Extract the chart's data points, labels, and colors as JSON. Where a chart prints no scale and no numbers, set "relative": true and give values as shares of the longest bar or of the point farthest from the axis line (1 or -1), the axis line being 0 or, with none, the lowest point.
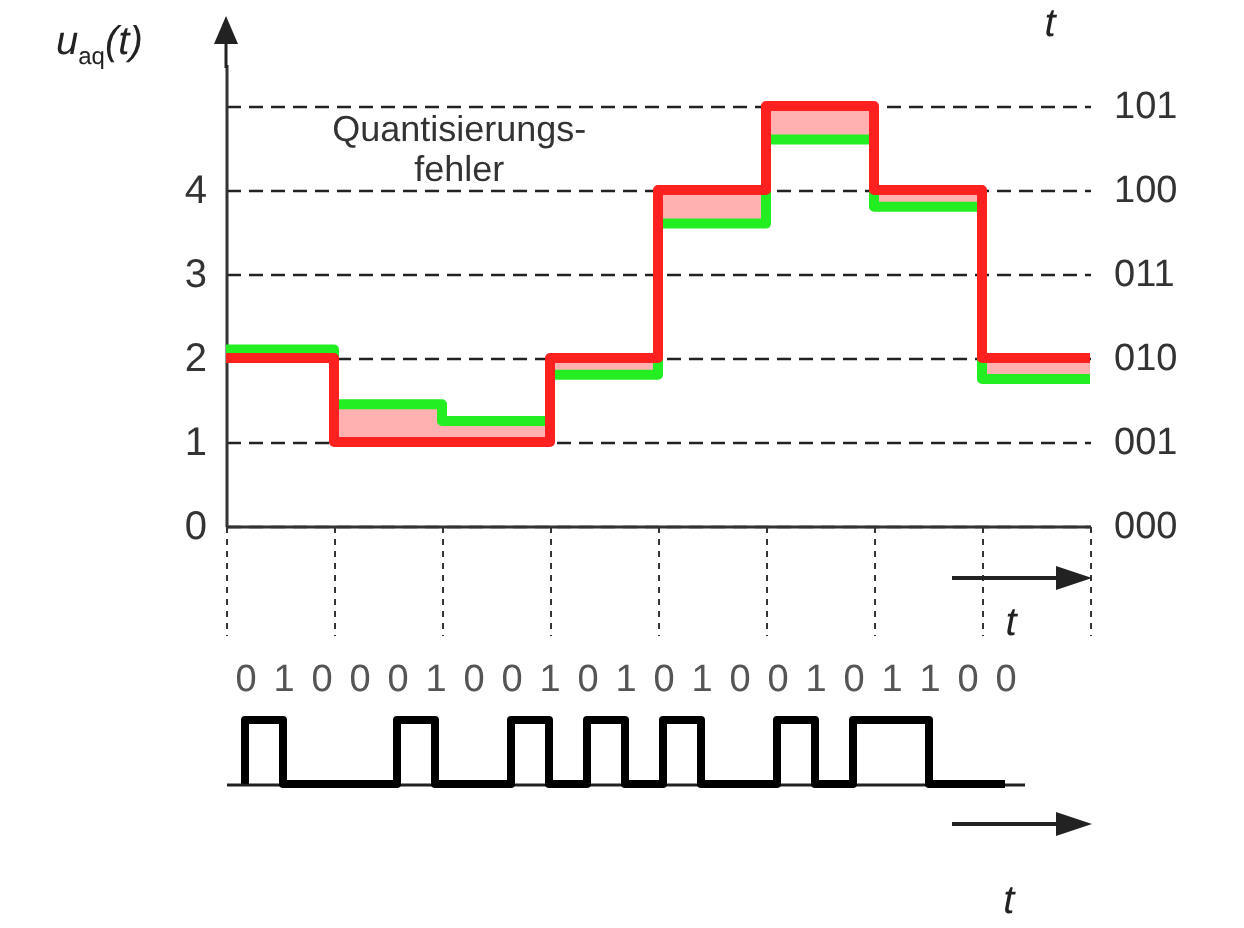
{
  "chart_data": [
    {
      "type": "step",
      "ylabel": "u$_{aq}$(t)",
      "y2label": "t",
      "xlabel": "t",
      "categories": [
        null,
        null,
        null,
        null,
        null,
        null,
        null,
        null,
        null
      ],
      "series": [
        {
          "color": "#ff2020",
          "values": [
            2,
            1,
            1,
            2,
            4,
            5,
            4,
            2,
            2
          ],
          "lower": [
            2,
            1,
            1,
            1.8,
            3.6,
            4.6,
            3.8,
            1.75,
            1.75
          ],
          "upper": [
            2.1,
            1.45,
            1.25,
            2,
            4,
            5,
            4,
            2,
            2
          ]
        },
        {
          "color": "#22ee22",
          "values": [
            2.1,
            1.45,
            1.25,
            1.8,
            3.6,
            4.6,
            3.8,
            1.75,
            1.75
          ]
        }
      ],
      "ylim": [
        0,
        5.5
      ],
      "yticks": [
        0,
        1,
        2,
        3,
        4,
        {
          "value": 5,
          "label": null
        }
      ],
      "grid": "y",
      "annotations": [
        "Quantisierungs-fehler",
        "000",
        "001",
        "010",
        "011",
        "100",
        "101"
      ]
    },
    {
      "type": "step",
      "relative": true,
      "xlabel": "t",
      "color": "#000000",
      "categories": [
        "0",
        "1",
        "0",
        "0",
        "0",
        "1",
        "0",
        "0",
        "1",
        "0",
        "1",
        "0",
        "1",
        "0",
        "0",
        "1",
        "0",
        "1",
        "1",
        "0",
        "0"
      ],
      "values": [
        0,
        1,
        0,
        0,
        0,
        1,
        0,
        0,
        1,
        0,
        1,
        0,
        1,
        0,
        0,
        1,
        0,
        1,
        1,
        0,
        0
      ]
    }
  ]
}
